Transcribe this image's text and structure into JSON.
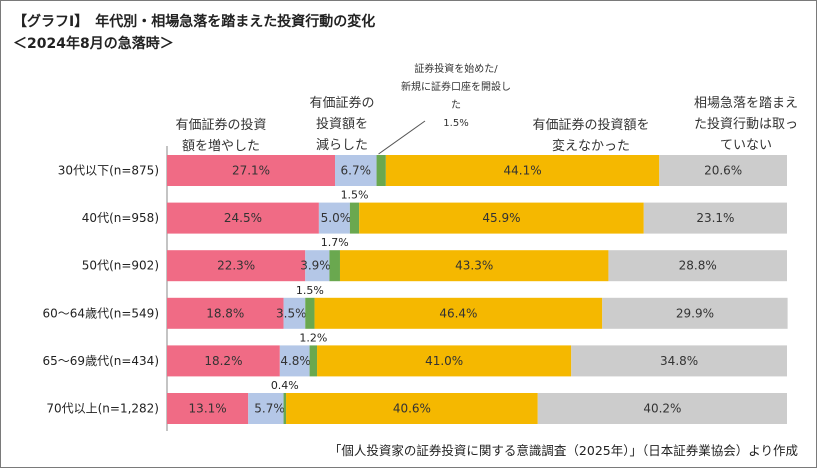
{
  "title": "【グラフI】　年代別・相場急落を踏まえた投資行動の変化",
  "subtitle": "＜2024年8月の急落時＞",
  "source": "「個人投資家の証券投資に関する意識調査（2025年）」（日本証券業協会）より作成",
  "category_headers": [
    {
      "line1": "有価証券の投資",
      "line2": "額を増やした",
      "line3": ""
    },
    {
      "line1": "有価証券の",
      "line2": "投資額を",
      "line3": "減らした"
    },
    {
      "line1": "有価証券の投資額を",
      "line2": "変えなかった",
      "line3": ""
    },
    {
      "line1": "相場急落を踏まえ",
      "line2": "た投資行動は取っ",
      "line3": "ていない"
    }
  ],
  "small_note": {
    "line1": "証券投資を始めた/",
    "line2": "新規に証券口座を開設し",
    "line3": "た",
    "line4": "1.5%"
  },
  "colors": {
    "increase": "#f06b85",
    "decrease": "#b4c7e7",
    "started": "#6aa84f",
    "unchanged": "#f5b800",
    "none": "#cccccc"
  },
  "chart_data": {
    "type": "bar",
    "orientation": "horizontal-stacked-100",
    "categories": [
      "30代以下(n=875)",
      "40代(n=958)",
      "50代(n=902)",
      "60～64歳代(n=549)",
      "65～69歳代(n=434)",
      "70代以上(n=1,282)"
    ],
    "series": [
      {
        "name": "有価証券の投資額を増やした",
        "values": [
          27.1,
          24.5,
          22.3,
          18.8,
          18.2,
          13.1
        ],
        "labels": [
          "27.1%",
          "24.5%",
          "22.3%",
          "18.8%",
          "18.2%",
          "13.1%"
        ]
      },
      {
        "name": "有価証券の投資額を減らした",
        "values": [
          6.7,
          5.0,
          3.9,
          3.5,
          4.8,
          5.7
        ],
        "labels": [
          "6.7%",
          "5.0%",
          "3.9%",
          "3.5%",
          "4.8%",
          "5.7%"
        ]
      },
      {
        "name": "証券投資を始めた/新規に証券口座を開設した",
        "values": [
          1.5,
          1.5,
          1.7,
          1.5,
          1.2,
          0.4
        ],
        "labels": [
          "",
          "1.5%",
          "1.7%",
          "1.5%",
          "1.2%",
          "0.4%"
        ]
      },
      {
        "name": "有価証券の投資額を変えなかった",
        "values": [
          44.1,
          45.9,
          43.3,
          46.4,
          41.0,
          40.6
        ],
        "labels": [
          "44.1%",
          "45.9%",
          "43.3%",
          "46.4%",
          "41.0%",
          "40.6%"
        ]
      },
      {
        "name": "相場急落を踏まえた投資行動は取っていない",
        "values": [
          20.6,
          23.1,
          28.8,
          29.9,
          34.8,
          40.2
        ],
        "labels": [
          "20.6%",
          "23.1%",
          "28.8%",
          "29.9%",
          "34.8%",
          "40.2%"
        ]
      }
    ],
    "xlim": [
      0,
      100
    ]
  }
}
